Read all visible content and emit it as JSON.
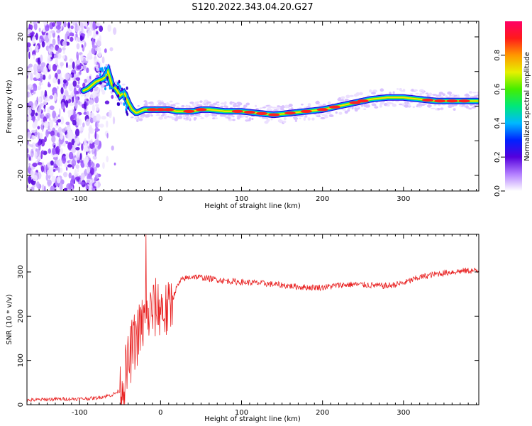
{
  "title": "S120.2022.343.04.20.G27",
  "colors": {
    "snr_line": "#e82020",
    "axis": "#000000",
    "background": "#ffffff"
  },
  "chart_data": [
    {
      "type": "heatmap",
      "xlabel": "Height of straight line (km)",
      "ylabel": "Frequency (Hz)",
      "xlim": [
        -165,
        393
      ],
      "ylim": [
        -24.5,
        24.5
      ],
      "xticks": [
        -100,
        0,
        100,
        200,
        300
      ],
      "yticks": [
        -20,
        -10,
        0,
        10,
        20
      ],
      "colorbar": {
        "label": "Normalized spectral amplitude",
        "range": [
          0,
          1
        ],
        "ticks": [
          0.0,
          0.2,
          0.4,
          0.6,
          0.8
        ],
        "colormap": "rainbow"
      },
      "ridge": {
        "name": "dominant frequency",
        "x": [
          -100,
          -90,
          -80,
          -70,
          -65,
          -60,
          -55,
          -50,
          -45,
          -40,
          -35,
          -30,
          -20,
          -10,
          0,
          10,
          20,
          30,
          40,
          50,
          60,
          80,
          100,
          120,
          140,
          160,
          180,
          200,
          220,
          240,
          260,
          280,
          300,
          320,
          340,
          360,
          380,
          393
        ],
        "y": [
          4,
          5,
          7,
          8,
          10,
          6,
          5,
          3,
          4,
          1,
          -1,
          -2,
          -1,
          -1,
          -1,
          -1,
          -1.5,
          -1.5,
          -1.5,
          -1,
          -1,
          -1.5,
          -1.5,
          -2,
          -2.5,
          -2,
          -1.5,
          -1,
          0,
          1,
          2,
          2.5,
          2.5,
          2,
          1.5,
          1.5,
          1.5,
          1.5
        ]
      },
      "noise_region": {
        "x_range": [
          -165,
          -75
        ],
        "note_visible": false
      }
    },
    {
      "type": "line",
      "xlabel": "Height of straight line (km)",
      "ylabel": "SNR (10 * v/v)",
      "xlim": [
        -165,
        393
      ],
      "ylim": [
        0,
        385
      ],
      "xticks": [
        -100,
        0,
        100,
        200,
        300
      ],
      "yticks": [
        0,
        100,
        200,
        300
      ],
      "series": [
        {
          "x": [
            -165,
            -140,
            -120,
            -100,
            -80,
            -60,
            -50,
            -45,
            -40,
            -35,
            -30,
            -25,
            -20,
            -15,
            -10,
            -5,
            0,
            5,
            10,
            15,
            20,
            25,
            30,
            40,
            60,
            80,
            100,
            120,
            140,
            160,
            180,
            200,
            220,
            240,
            260,
            280,
            300,
            320,
            340,
            360,
            380,
            393
          ],
          "y": [
            10,
            12,
            13,
            13,
            15,
            22,
            32,
            55,
            90,
            130,
            150,
            170,
            190,
            200,
            210,
            220,
            220,
            210,
            210,
            240,
            265,
            280,
            285,
            290,
            285,
            280,
            277,
            275,
            272,
            268,
            265,
            265,
            270,
            272,
            270,
            268,
            275,
            288,
            295,
            300,
            303,
            302
          ]
        }
      ]
    }
  ]
}
